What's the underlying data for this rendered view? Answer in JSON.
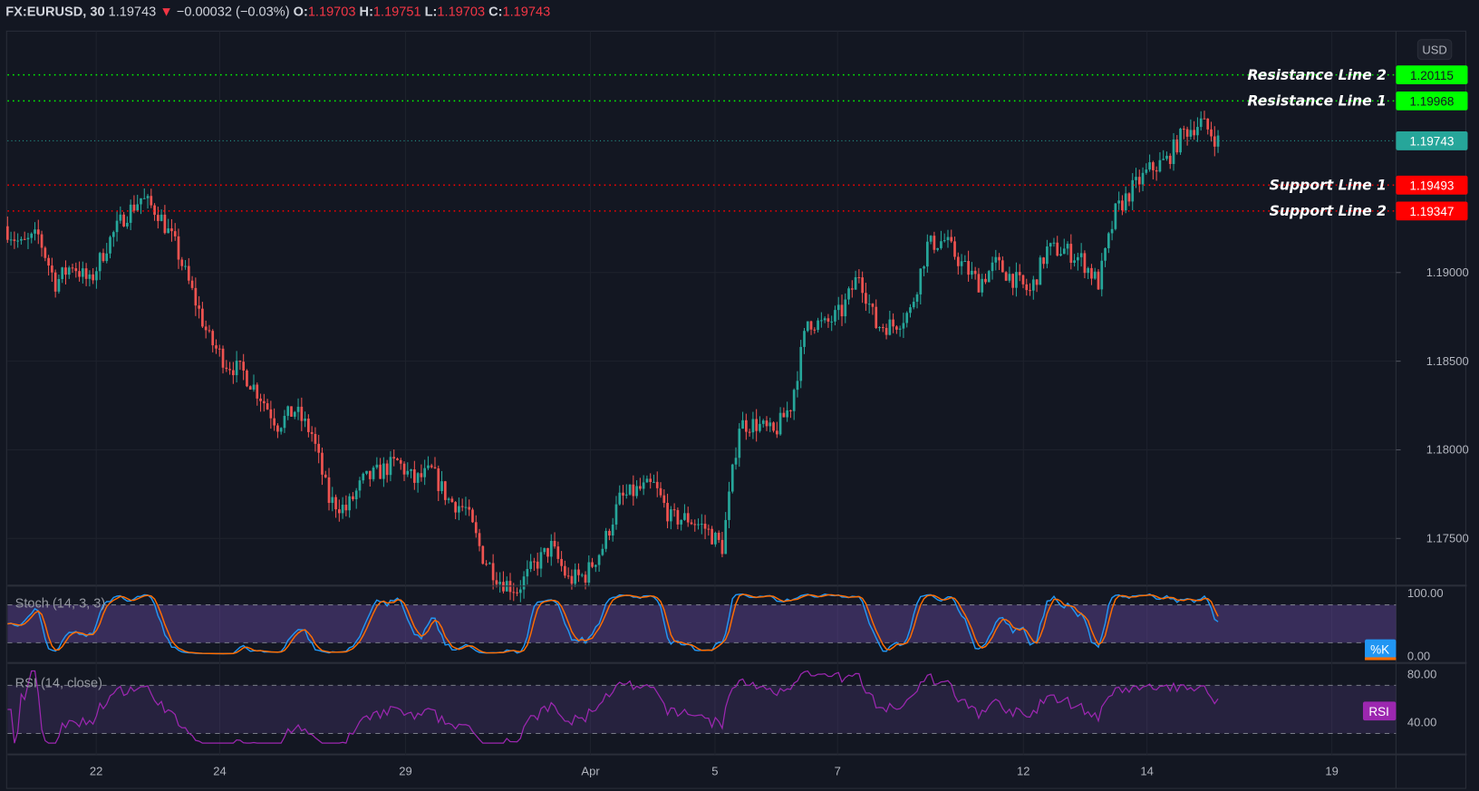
{
  "header": {
    "symbol": "FX:EURUSD, 30",
    "last": "1.19743",
    "change": "−0.00032 (−0.03%)",
    "o_label": "O:",
    "o": "1.19703",
    "h_label": "H:",
    "h": "1.19751",
    "l_label": "L:",
    "l": "1.19703",
    "c_label": "C:",
    "c": "1.19743",
    "direction_icon": "triangle-down-icon"
  },
  "currency_button": "USD",
  "colors": {
    "up": "#26a69a",
    "down": "#ef5350",
    "resistance": "#00ff00",
    "support": "#ff0000",
    "last": "#26a69a",
    "stoch_k": "#2196f3",
    "stoch_d": "#ff6d00",
    "rsi": "#9c27b0"
  },
  "lines": [
    {
      "label": "Resistance Line 2",
      "price": 1.20115,
      "tag": "1.20115",
      "kind": "resistance"
    },
    {
      "label": "Resistance Line 1",
      "price": 1.19968,
      "tag": "1.19968",
      "kind": "resistance"
    },
    {
      "label": "Support Line 1",
      "price": 1.19493,
      "tag": "1.19493",
      "kind": "support"
    },
    {
      "label": "Support Line 2",
      "price": 1.19347,
      "tag": "1.19347",
      "kind": "support"
    }
  ],
  "last_price": {
    "price": 1.19743,
    "tag": "1.19743"
  },
  "price_axis": [
    "1.19000",
    "1.18500",
    "1.18000",
    "1.17500"
  ],
  "date_axis": [
    "22",
    "24",
    "29",
    "Apr",
    "5",
    "7",
    "12",
    "14",
    "19"
  ],
  "stoch": {
    "title": "Stoch (14, 3, 3)",
    "ticks": [
      "100.00",
      "0.00"
    ],
    "bands": [
      80,
      20
    ],
    "tag": "%K"
  },
  "rsi": {
    "title": "RSI (14, close)",
    "ticks": [
      "80.00",
      "40.00"
    ],
    "bands": [
      70,
      30
    ],
    "tag": "RSI"
  },
  "chart_data": {
    "type": "candlestick",
    "symbol": "FX:EURUSD",
    "interval": "30",
    "approx_closes": [
      1.19261,
      1.19154,
      1.19207,
      1.18941,
      1.19048,
      1.18941,
      1.19154,
      1.19314,
      1.1942,
      1.1934,
      1.19154,
      1.18888,
      1.18622,
      1.18489,
      1.18436,
      1.18303,
      1.18144,
      1.18223,
      1.1809,
      1.17718,
      1.17665,
      1.17824,
      1.17878,
      1.17931,
      1.17824,
      1.17878,
      1.17718,
      1.17665,
      1.17399,
      1.17266,
      1.17213,
      1.17346,
      1.17452,
      1.17266,
      1.17293,
      1.17452,
      1.17718,
      1.17771,
      1.17798,
      1.17612,
      1.17612,
      1.17559,
      1.17452,
      1.18144,
      1.18144,
      1.1809,
      1.1825,
      1.18729,
      1.18702,
      1.18782,
      1.18995,
      1.18702,
      1.18702,
      1.18782,
      1.19154,
      1.19181,
      1.19048,
      1.18941,
      1.19048,
      1.18968,
      1.18888,
      1.19128,
      1.19128,
      1.19074,
      1.18941,
      1.1934,
      1.19473,
      1.1958,
      1.19633,
      1.19793,
      1.19846,
      1.19743
    ],
    "y_range": [
      1.1725,
      1.2025
    ],
    "grid": true
  }
}
